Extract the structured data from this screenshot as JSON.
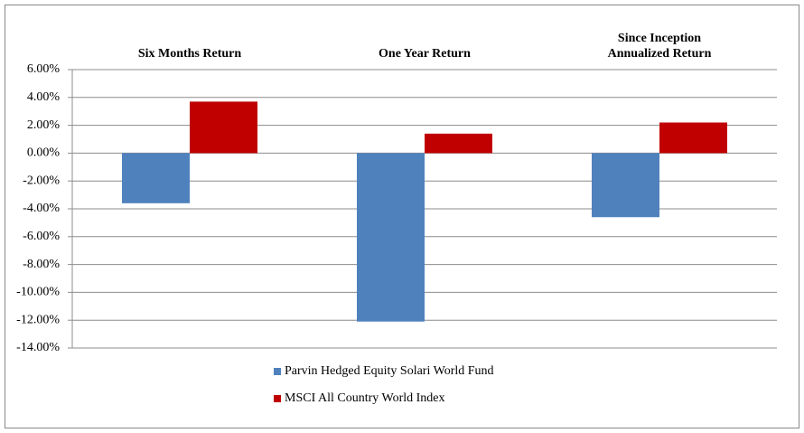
{
  "chart_data": {
    "type": "bar",
    "categories": [
      "Six Months Return",
      "One Year Return",
      "Since Inception\nAnnualized Return"
    ],
    "series": [
      {
        "name": "Parvin Hedged Equity Solari World Fund",
        "color": "#4f81bd",
        "values": [
          -3.6,
          -12.1,
          -4.6
        ]
      },
      {
        "name": "MSCI All Country World Index",
        "color": "#c00000",
        "values": [
          3.7,
          1.4,
          2.2
        ]
      }
    ],
    "ylim": [
      -14,
      6
    ],
    "yticks": [
      {
        "value": -14,
        "label": "-14.00%"
      },
      {
        "value": -12,
        "label": "-12.00%"
      },
      {
        "value": -10,
        "label": "-10.00%"
      },
      {
        "value": -8,
        "label": "-8.00%"
      },
      {
        "value": -6,
        "label": "-6.00%"
      },
      {
        "value": -4,
        "label": "-4.00%"
      },
      {
        "value": -2,
        "label": "-2.00%"
      },
      {
        "value": 0,
        "label": "0.00%"
      },
      {
        "value": 2,
        "label": "2.00%"
      },
      {
        "value": 4,
        "label": "4.00%"
      },
      {
        "value": 6,
        "label": "6.00%"
      }
    ],
    "grid": true,
    "legend": "bottom"
  }
}
